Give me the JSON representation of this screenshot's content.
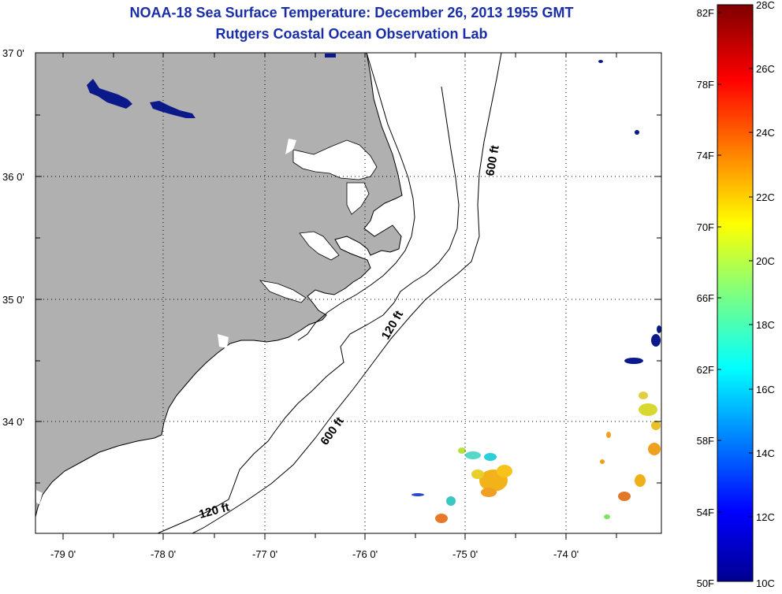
{
  "title": {
    "line1": "NOAA-18 Sea Surface Temperature:  December 26, 2013 1955 GMT",
    "line2": "Rutgers Coastal Ocean Observation Lab"
  },
  "map": {
    "lat_labels": [
      "37 0'",
      "36 0'",
      "35 0'",
      "34 0'"
    ],
    "lon_labels": [
      "-79 0'",
      "-78 0'",
      "-77 0'",
      "-76 0'",
      "-75 0'",
      "-74 0'"
    ],
    "contour_labels": [
      "600 ft",
      "120 ft",
      "600 ft",
      "120 ft"
    ],
    "land_color": "#b0b0b0",
    "grid": true
  },
  "colorbar": {
    "fahrenheit_labels": [
      "82F",
      "78F",
      "74F",
      "70F",
      "66F",
      "62F",
      "58F",
      "54F",
      "50F"
    ],
    "celsius_labels": [
      "28C",
      "26C",
      "24C",
      "22C",
      "20C",
      "18C",
      "16C",
      "14C",
      "12C",
      "10C"
    ],
    "colormap": "jet",
    "min_c": 10,
    "max_c": 28
  }
}
